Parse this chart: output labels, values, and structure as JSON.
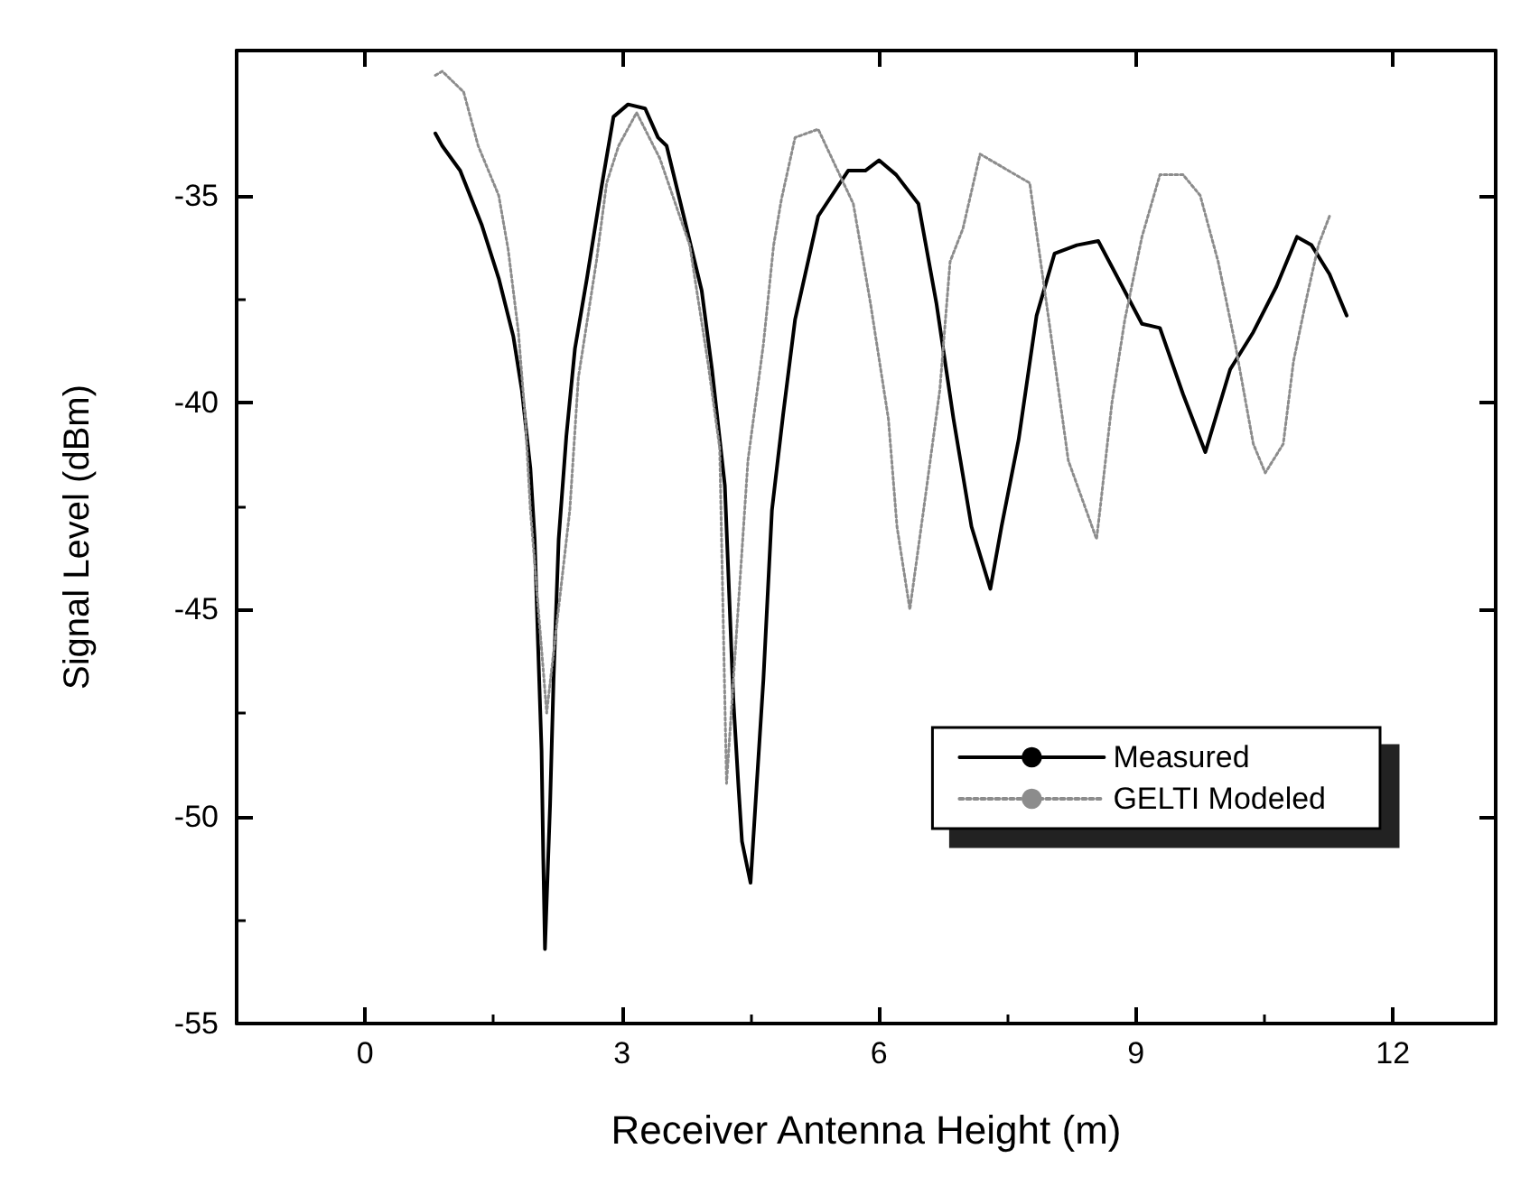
{
  "chart_data": {
    "type": "line",
    "xlabel": "Receiver Antenna Height (m)",
    "ylabel": "Signal Level (dBm)",
    "xlim": [
      -1.5,
      13.2
    ],
    "xticks": [
      0,
      3,
      6,
      9,
      12
    ],
    "ylim": [
      -55,
      -31.5
    ],
    "yticks": [
      -55,
      -50,
      -45,
      -40,
      -35
    ],
    "grid": false,
    "legend": "bottom right",
    "marker": "none",
    "series": [
      {
        "name": "Measured",
        "color": "#000000",
        "line_style": "solid",
        "x": [
          0.82,
          0.9,
          1.11,
          1.36,
          1.56,
          1.73,
          1.83,
          1.93,
          1.98,
          2.02,
          2.06,
          2.08,
          2.1,
          2.16,
          2.2,
          2.26,
          2.35,
          2.45,
          2.59,
          2.76,
          2.9,
          3.07,
          3.27,
          3.42,
          3.52,
          3.72,
          3.93,
          4.05,
          4.2,
          4.3,
          4.36,
          4.4,
          4.5,
          4.57,
          4.65,
          4.75,
          4.88,
          5.02,
          5.29,
          5.64,
          5.84,
          6.0,
          6.2,
          6.46,
          6.67,
          6.87,
          7.08,
          7.3,
          7.43,
          7.63,
          7.84,
          8.05,
          8.31,
          8.56,
          8.79,
          9.07,
          9.28,
          9.55,
          9.81,
          10.1,
          10.37,
          10.64,
          10.88,
          11.05,
          11.26,
          11.46
        ],
        "values": [
          -33.5,
          -33.8,
          -34.4,
          -35.7,
          -37.0,
          -38.4,
          -39.7,
          -41.6,
          -43.3,
          -45.9,
          -48.4,
          -51.0,
          -53.2,
          -49.7,
          -46.7,
          -43.3,
          -40.8,
          -38.7,
          -37.0,
          -34.8,
          -33.1,
          -32.8,
          -32.9,
          -33.6,
          -33.8,
          -35.5,
          -37.3,
          -39.2,
          -42.0,
          -47.2,
          -49.3,
          -50.6,
          -51.6,
          -49.3,
          -46.7,
          -42.6,
          -40.3,
          -38.0,
          -35.5,
          -34.4,
          -34.4,
          -34.15,
          -34.5,
          -35.2,
          -37.6,
          -40.4,
          -43.0,
          -44.5,
          -43.0,
          -40.9,
          -37.9,
          -36.4,
          -36.2,
          -36.1,
          -37.0,
          -38.1,
          -38.2,
          -39.8,
          -41.2,
          -39.2,
          -38.3,
          -37.2,
          -36.0,
          -36.2,
          -36.9,
          -37.9
        ]
      },
      {
        "name": "GELTI Modeled",
        "color": "#8c8c8c",
        "line_style": "dotted",
        "x": [
          0.82,
          0.9,
          1.15,
          1.32,
          1.56,
          1.67,
          1.79,
          1.87,
          1.93,
          2.12,
          2.39,
          2.49,
          2.7,
          2.82,
          2.96,
          3.17,
          3.44,
          3.79,
          4.0,
          4.14,
          4.22,
          4.47,
          4.65,
          4.77,
          4.86,
          5.02,
          5.29,
          5.7,
          5.9,
          6.11,
          6.21,
          6.36,
          6.52,
          6.71,
          6.83,
          6.98,
          7.18,
          7.76,
          7.84,
          8.05,
          8.21,
          8.54,
          8.58,
          8.72,
          8.87,
          9.07,
          9.28,
          9.55,
          9.75,
          9.96,
          10.16,
          10.37,
          10.51,
          10.72,
          10.84,
          10.99,
          11.13,
          11.26
        ],
        "values": [
          -32.1,
          -32.0,
          -32.5,
          -33.8,
          -35.0,
          -36.3,
          -38.3,
          -40.4,
          -42.6,
          -47.5,
          -42.6,
          -39.4,
          -36.6,
          -34.7,
          -33.8,
          -33.0,
          -34.1,
          -36.2,
          -39.0,
          -41.1,
          -49.2,
          -41.4,
          -38.6,
          -36.2,
          -35.1,
          -33.6,
          -33.4,
          -35.2,
          -37.6,
          -40.4,
          -43.0,
          -45.0,
          -42.6,
          -39.7,
          -36.6,
          -35.8,
          -34.0,
          -34.7,
          -35.9,
          -39.0,
          -41.4,
          -43.3,
          -42.6,
          -40.0,
          -38.0,
          -36.0,
          -34.5,
          -34.5,
          -35.0,
          -36.6,
          -38.6,
          -41.0,
          -41.7,
          -41.0,
          -39.0,
          -37.5,
          -36.2,
          -35.5
        ]
      }
    ]
  }
}
